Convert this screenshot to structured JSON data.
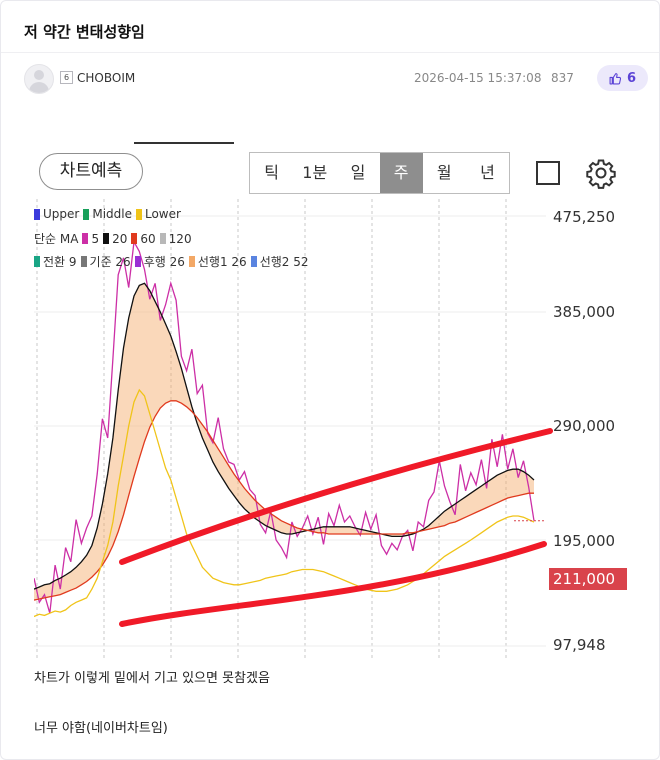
{
  "post": {
    "title": "저 약간 변태성향임",
    "author": {
      "level": "6",
      "name": "CHOBOIM"
    },
    "date": "2026-04-15 15:37:08",
    "views": "837",
    "likes": "6",
    "body_lines": [
      "차트가 이렇게 밑에서 기고 있으면 못참겠음",
      "너무 야함(네이버차트임)"
    ]
  },
  "chart_toolbar": {
    "predict_label": "차트예측",
    "periods": [
      "틱",
      "1분",
      "일",
      "주",
      "월",
      "년"
    ],
    "active_period": "주"
  },
  "legend": {
    "bollinger": [
      {
        "label": "Upper",
        "color": "#3b3bdc"
      },
      {
        "label": "Middle",
        "color": "#18a05a"
      },
      {
        "label": "Lower",
        "color": "#f0c419"
      }
    ],
    "ma_title": "단순 MA",
    "ma": [
      {
        "label": "5",
        "color": "#cc2fa6"
      },
      {
        "label": "20",
        "color": "#111111"
      },
      {
        "label": "60",
        "color": "#e03a1e"
      },
      {
        "label": "120",
        "color": "#b8b8b8"
      }
    ],
    "ichimoku": [
      {
        "label": "전환 9",
        "color": "#1aa585"
      },
      {
        "label": "기준 26",
        "color": "#777777"
      },
      {
        "label": "후행 26",
        "color": "#9a2fd4"
      },
      {
        "label": "선행1 26",
        "color": "#f3a866"
      },
      {
        "label": "선행2 52",
        "color": "#5a84e0"
      }
    ]
  },
  "chart_data": {
    "type": "line",
    "y_ticks": [
      "475,250",
      "385,000",
      "290,000",
      "195,000",
      "97,948"
    ],
    "y_tick_values": [
      475250,
      385000,
      290000,
      195000,
      97948
    ],
    "ylim": [
      97948,
      475250
    ],
    "current_price": "211,000",
    "current_price_value": 211000,
    "grid": true,
    "weeks": 96,
    "series": [
      {
        "name": "5",
        "color": "#cc2fa6",
        "values": [
          160000,
          138000,
          145000,
          128000,
          172000,
          150000,
          188000,
          175000,
          212000,
          192000,
          205000,
          215000,
          250000,
          296000,
          280000,
          346000,
          420000,
          436000,
          408000,
          451000,
          442000,
          425000,
          397000,
          412000,
          378000,
          392000,
          412000,
          396000,
          348000,
          336000,
          354000,
          317000,
          324000,
          284000,
          276000,
          297000,
          271000,
          260000,
          258000,
          245000,
          252000,
          237000,
          232000,
          208000,
          201000,
          219000,
          195000,
          188000,
          179000,
          210000,
          198000,
          205000,
          215000,
          200000,
          214000,
          191000,
          217000,
          207000,
          224000,
          210000,
          215000,
          206000,
          199000,
          218000,
          204000,
          216000,
          190000,
          182000,
          192000,
          186000,
          198000,
          203000,
          185000,
          210000,
          206000,
          228000,
          235000,
          261000,
          240000,
          227000,
          216000,
          258000,
          236000,
          251000,
          241000,
          262000,
          238000,
          279000,
          256000,
          283000,
          254000,
          271000,
          247000,
          261000,
          239000,
          211000
        ]
      },
      {
        "name": "20",
        "color": "#111111",
        "values": [
          150000,
          152000,
          154000,
          155000,
          158000,
          160000,
          163000,
          166000,
          170000,
          175000,
          181000,
          190000,
          205000,
          225000,
          250000,
          280000,
          320000,
          355000,
          380000,
          400000,
          410000,
          412000,
          405000,
          395000,
          385000,
          375000,
          365000,
          352000,
          338000,
          322000,
          306000,
          292000,
          280000,
          270000,
          260000,
          252000,
          245000,
          238000,
          232000,
          226000,
          221000,
          217000,
          213000,
          210000,
          207000,
          205000,
          203000,
          201000,
          200000,
          200000,
          201000,
          202000,
          203000,
          204000,
          205000,
          206000,
          206000,
          206000,
          206000,
          206000,
          206000,
          205000,
          204000,
          203000,
          202000,
          201000,
          200000,
          199000,
          198000,
          198000,
          198000,
          199000,
          200000,
          202000,
          204000,
          207000,
          211000,
          215000,
          219000,
          222000,
          225000,
          228000,
          231000,
          234000,
          237000,
          240000,
          243000,
          246000,
          249000,
          251000,
          253000,
          254000,
          254000,
          252000,
          249000,
          245000
        ]
      },
      {
        "name": "60",
        "color": "#e03a1e",
        "values": [
          140000,
          141000,
          142000,
          143000,
          144000,
          145000,
          147000,
          149000,
          151000,
          154000,
          157000,
          161000,
          166000,
          172000,
          180000,
          190000,
          202000,
          216000,
          232000,
          248000,
          263000,
          277000,
          289000,
          298000,
          305000,
          309000,
          311000,
          311000,
          309000,
          306000,
          302000,
          297000,
          291000,
          285000,
          278000,
          271000,
          264000,
          257000,
          250000,
          244000,
          238000,
          233000,
          228000,
          224000,
          220000,
          217000,
          214000,
          211000,
          209000,
          207000,
          205000,
          204000,
          203000,
          202000,
          201000,
          201000,
          200000,
          200000,
          200000,
          200000,
          200000,
          200000,
          200000,
          200000,
          200000,
          200000,
          200000,
          200000,
          200000,
          200000,
          200000,
          201000,
          201000,
          202000,
          203000,
          204000,
          205000,
          206000,
          207000,
          209000,
          210000,
          212000,
          214000,
          216000,
          218000,
          220000,
          222000,
          224000,
          226000,
          228000,
          230000,
          231000,
          232000,
          233000,
          234000,
          234000
        ]
      },
      {
        "name": "Lower",
        "color": "#f0c419",
        "values": [
          125000,
          127000,
          126000,
          128000,
          130000,
          129000,
          131000,
          135000,
          138000,
          140000,
          142000,
          150000,
          160000,
          175000,
          190000,
          210000,
          240000,
          265000,
          290000,
          310000,
          320000,
          315000,
          300000,
          285000,
          270000,
          255000,
          245000,
          230000,
          215000,
          200000,
          190000,
          180000,
          170000,
          165000,
          160000,
          158000,
          156000,
          155000,
          154000,
          154000,
          155000,
          156000,
          157000,
          158000,
          160000,
          161000,
          162000,
          163000,
          164000,
          166000,
          167000,
          168000,
          168000,
          168000,
          167000,
          166000,
          164000,
          162000,
          160000,
          158000,
          156000,
          154000,
          152000,
          150000,
          149000,
          148000,
          148000,
          148000,
          149000,
          150000,
          152000,
          154000,
          157000,
          160000,
          164000,
          168000,
          172000,
          176000,
          180000,
          183000,
          186000,
          189000,
          192000,
          195000,
          198000,
          201000,
          204000,
          207000,
          210000,
          212000,
          214000,
          215000,
          215000,
          214000,
          212000,
          210000
        ]
      }
    ],
    "cloud_color": "#f3a866"
  }
}
